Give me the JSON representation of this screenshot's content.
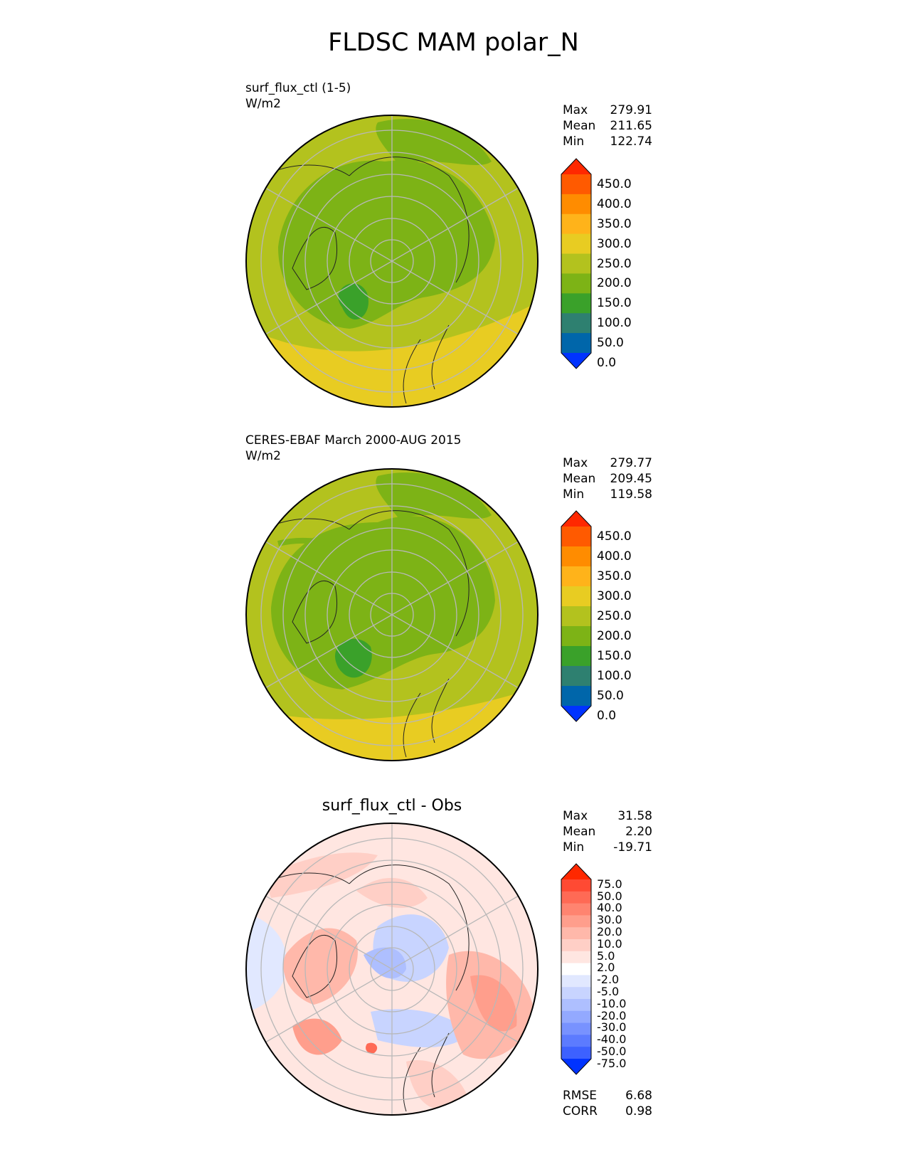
{
  "title": "FLDSC MAM polar_N",
  "panels": [
    {
      "title_lines": [
        "surf_flux_ctl (1-5)",
        "W/m2"
      ],
      "stats": [
        {
          "label": "Max",
          "value": "279.91"
        },
        {
          "label": "Mean",
          "value": "211.65"
        },
        {
          "label": "Min",
          "value": "122.74"
        }
      ],
      "colorbar": {
        "labels": [
          "450.0",
          "400.0",
          "350.0",
          "300.0",
          "250.0",
          "200.0",
          "150.0",
          "100.0",
          "50.0",
          "0.0"
        ],
        "colors": [
          "#ff2800",
          "#ff5a00",
          "#ff8c00",
          "#ffb31a",
          "#e8cc22",
          "#b3c21e",
          "#7db316",
          "#3aa12a",
          "#2e8070",
          "#0066aa",
          "#0033ff"
        ]
      }
    },
    {
      "title_lines": [
        "CERES-EBAF March 2000-AUG 2015",
        "W/m2"
      ],
      "stats": [
        {
          "label": "Max",
          "value": "279.77"
        },
        {
          "label": "Mean",
          "value": "209.45"
        },
        {
          "label": "Min",
          "value": "119.58"
        }
      ],
      "colorbar": {
        "labels": [
          "450.0",
          "400.0",
          "350.0",
          "300.0",
          "250.0",
          "200.0",
          "150.0",
          "100.0",
          "50.0",
          "0.0"
        ],
        "colors": [
          "#ff2800",
          "#ff5a00",
          "#ff8c00",
          "#ffb31a",
          "#e8cc22",
          "#b3c21e",
          "#7db316",
          "#3aa12a",
          "#2e8070",
          "#0066aa",
          "#0033ff"
        ]
      }
    },
    {
      "title": "surf_flux_ctl - Obs",
      "stats": [
        {
          "label": "Max",
          "value": "31.58"
        },
        {
          "label": "Mean",
          "value": "2.20"
        },
        {
          "label": "Min",
          "value": "-19.71"
        }
      ],
      "metrics": [
        {
          "label": "RMSE",
          "value": "6.68"
        },
        {
          "label": "CORR",
          "value": "0.98"
        }
      ],
      "colorbar": {
        "labels": [
          "75.0",
          "50.0",
          "40.0",
          "30.0",
          "20.0",
          "10.0",
          "5.0",
          "2.0",
          "-2.0",
          "-5.0",
          "-10.0",
          "-20.0",
          "-30.0",
          "-40.0",
          "-50.0",
          "-75.0"
        ],
        "colors": [
          "#ff2800",
          "#ff4a33",
          "#ff6a55",
          "#ff8470",
          "#ff9e8c",
          "#ffb8aa",
          "#ffcfc6",
          "#ffe6e1",
          "#ffffff",
          "#e1e8ff",
          "#c8d4ff",
          "#aebfff",
          "#93a9ff",
          "#7892ff",
          "#5c7bff",
          "#3d61ff",
          "#0033ff"
        ]
      }
    }
  ]
}
